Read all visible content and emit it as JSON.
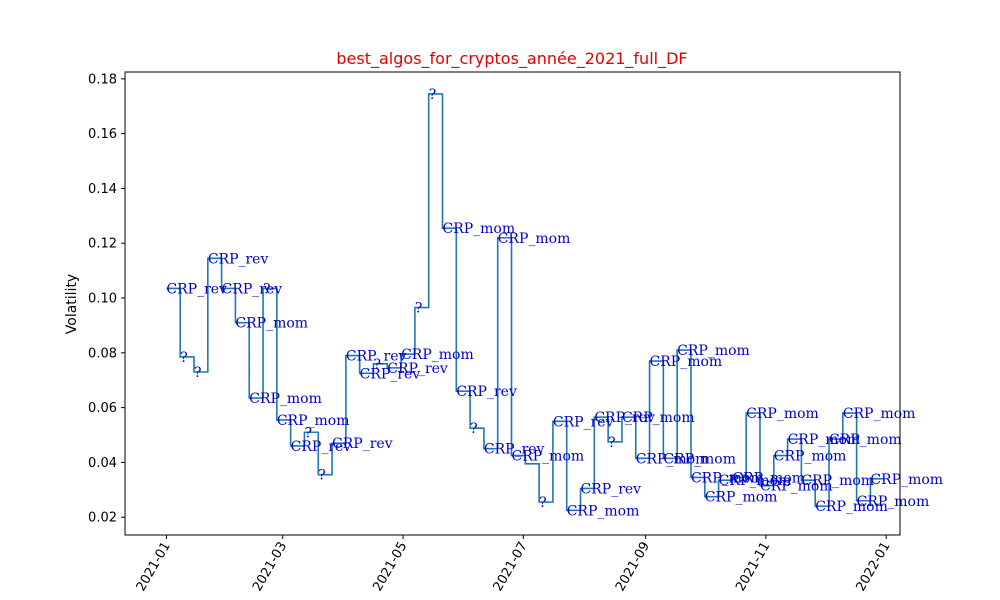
{
  "colors": {
    "line": "#1f77b4",
    "title": "#e00000",
    "annotation": "#0000cc",
    "axes": "#000000"
  },
  "chart_data": {
    "type": "line",
    "step": true,
    "title": "best_algos_for_cryptos_année_2021_full_DF",
    "xlabel": "",
    "ylabel": "Volatility",
    "x_is_date": true,
    "xlim": [
      "2020-12-11",
      "2022-01-08"
    ],
    "ylim": [
      0.0135,
      0.1825
    ],
    "xticks": [
      "2021-01",
      "2021-03",
      "2021-05",
      "2021-07",
      "2021-09",
      "2021-11",
      "2022-01"
    ],
    "xtick_dates": [
      "2021-01-01",
      "2021-03-01",
      "2021-05-01",
      "2021-07-01",
      "2021-09-01",
      "2021-11-01",
      "2022-01-01"
    ],
    "yticks": [
      "0.02",
      "0.04",
      "0.06",
      "0.08",
      "0.10",
      "0.12",
      "0.14",
      "0.16",
      "0.18"
    ],
    "ytick_values": [
      0.02,
      0.04,
      0.06,
      0.08,
      0.1,
      0.12,
      0.14,
      0.16,
      0.18
    ],
    "grid": false,
    "series": [
      {
        "points": [
          [
            "2021-01-01",
            0.1035
          ],
          [
            "2021-01-08",
            0.0785
          ],
          [
            "2021-01-15",
            0.073
          ],
          [
            "2021-01-22",
            0.1145
          ],
          [
            "2021-01-29",
            0.1035
          ],
          [
            "2021-02-05",
            0.091
          ],
          [
            "2021-02-12",
            0.0635
          ],
          [
            "2021-02-19",
            0.1035
          ],
          [
            "2021-02-26",
            0.0555
          ],
          [
            "2021-03-05",
            0.046
          ],
          [
            "2021-03-12",
            0.051
          ],
          [
            "2021-03-19",
            0.0355
          ],
          [
            "2021-03-26",
            0.047
          ],
          [
            "2021-04-02",
            0.079
          ],
          [
            "2021-04-09",
            0.0725
          ],
          [
            "2021-04-16",
            0.076
          ],
          [
            "2021-04-23",
            0.0745
          ],
          [
            "2021-04-30",
            0.0795
          ],
          [
            "2021-05-07",
            0.0965
          ],
          [
            "2021-05-14",
            0.1745
          ],
          [
            "2021-05-21",
            0.1255
          ],
          [
            "2021-05-28",
            0.066
          ],
          [
            "2021-06-04",
            0.0525
          ],
          [
            "2021-06-11",
            0.045
          ],
          [
            "2021-06-18",
            0.122
          ],
          [
            "2021-06-25",
            0.0425
          ],
          [
            "2021-07-02",
            0.0395
          ],
          [
            "2021-07-09",
            0.0255
          ],
          [
            "2021-07-16",
            0.055
          ],
          [
            "2021-07-23",
            0.0225
          ],
          [
            "2021-07-30",
            0.0305
          ],
          [
            "2021-08-06",
            0.0565
          ],
          [
            "2021-08-13",
            0.0475
          ],
          [
            "2021-08-20",
            0.0565
          ],
          [
            "2021-08-27",
            0.0415
          ],
          [
            "2021-09-03",
            0.077
          ],
          [
            "2021-09-10",
            0.0415
          ],
          [
            "2021-09-17",
            0.081
          ],
          [
            "2021-09-24",
            0.0345
          ],
          [
            "2021-10-01",
            0.0275
          ],
          [
            "2021-10-08",
            0.0335
          ],
          [
            "2021-10-15",
            0.0345
          ],
          [
            "2021-10-22",
            0.058
          ],
          [
            "2021-10-29",
            0.0315
          ],
          [
            "2021-11-05",
            0.0425
          ],
          [
            "2021-11-12",
            0.0485
          ],
          [
            "2021-11-19",
            0.0335
          ],
          [
            "2021-11-26",
            0.024
          ],
          [
            "2021-12-03",
            0.0485
          ],
          [
            "2021-12-10",
            0.058
          ],
          [
            "2021-12-17",
            0.026
          ],
          [
            "2021-12-24",
            0.034
          ]
        ]
      }
    ],
    "annotations": [
      {
        "x": "2021-01-01",
        "y": 0.1035,
        "text": "CRP_rev"
      },
      {
        "x": "2021-01-08",
        "y": 0.0785,
        "text": "?"
      },
      {
        "x": "2021-01-15",
        "y": 0.073,
        "text": "?"
      },
      {
        "x": "2021-01-22",
        "y": 0.1145,
        "text": "CRP_rev"
      },
      {
        "x": "2021-01-29",
        "y": 0.1035,
        "text": "CRP_rev"
      },
      {
        "x": "2021-02-05",
        "y": 0.091,
        "text": "CRP_mom"
      },
      {
        "x": "2021-02-12",
        "y": 0.0635,
        "text": "CRP_mom"
      },
      {
        "x": "2021-02-19",
        "y": 0.1035,
        "text": "?"
      },
      {
        "x": "2021-02-26",
        "y": 0.0555,
        "text": "CRP_mom"
      },
      {
        "x": "2021-03-05",
        "y": 0.046,
        "text": "CRP_rev"
      },
      {
        "x": "2021-03-12",
        "y": 0.051,
        "text": "?"
      },
      {
        "x": "2021-03-19",
        "y": 0.0355,
        "text": "?"
      },
      {
        "x": "2021-03-26",
        "y": 0.047,
        "text": "CRP_rev"
      },
      {
        "x": "2021-04-02",
        "y": 0.079,
        "text": "CRP_rev"
      },
      {
        "x": "2021-04-09",
        "y": 0.0725,
        "text": "CRP_rev"
      },
      {
        "x": "2021-04-16",
        "y": 0.076,
        "text": "?"
      },
      {
        "x": "2021-04-23",
        "y": 0.0745,
        "text": "CRP_rev"
      },
      {
        "x": "2021-04-30",
        "y": 0.0795,
        "text": "CRP_mom"
      },
      {
        "x": "2021-05-07",
        "y": 0.0965,
        "text": "?"
      },
      {
        "x": "2021-05-14",
        "y": 0.1745,
        "text": "?"
      },
      {
        "x": "2021-05-21",
        "y": 0.1255,
        "text": "CRP_mom"
      },
      {
        "x": "2021-05-28",
        "y": 0.066,
        "text": "CRP_rev"
      },
      {
        "x": "2021-06-04",
        "y": 0.0525,
        "text": "?"
      },
      {
        "x": "2021-06-11",
        "y": 0.045,
        "text": "CRP_rev"
      },
      {
        "x": "2021-06-18",
        "y": 0.122,
        "text": "CRP_mom"
      },
      {
        "x": "2021-06-25",
        "y": 0.0425,
        "text": "CRP_mom"
      },
      {
        "x": "2021-07-09",
        "y": 0.0255,
        "text": "?"
      },
      {
        "x": "2021-07-16",
        "y": 0.055,
        "text": "CRP_rev"
      },
      {
        "x": "2021-07-23",
        "y": 0.0225,
        "text": "CRP_mom"
      },
      {
        "x": "2021-07-30",
        "y": 0.0305,
        "text": "CRP_rev"
      },
      {
        "x": "2021-08-06",
        "y": 0.0565,
        "text": "CRP_rev"
      },
      {
        "x": "2021-08-13",
        "y": 0.0475,
        "text": "?"
      },
      {
        "x": "2021-08-20",
        "y": 0.0565,
        "text": "CRP_mom"
      },
      {
        "x": "2021-08-27",
        "y": 0.0415,
        "text": "CRP_mom"
      },
      {
        "x": "2021-09-03",
        "y": 0.077,
        "text": "CRP_mom"
      },
      {
        "x": "2021-09-10",
        "y": 0.0415,
        "text": "CRP_mom"
      },
      {
        "x": "2021-09-17",
        "y": 0.081,
        "text": "CRP_mom"
      },
      {
        "x": "2021-09-24",
        "y": 0.0345,
        "text": "CRP_mom"
      },
      {
        "x": "2021-10-01",
        "y": 0.0275,
        "text": "CRP_mom"
      },
      {
        "x": "2021-10-08",
        "y": 0.0335,
        "text": "CRP_mom"
      },
      {
        "x": "2021-10-15",
        "y": 0.0345,
        "text": "CRP_mom"
      },
      {
        "x": "2021-10-22",
        "y": 0.058,
        "text": "CRP_mom"
      },
      {
        "x": "2021-10-29",
        "y": 0.0315,
        "text": "CRP_mom"
      },
      {
        "x": "2021-11-05",
        "y": 0.0425,
        "text": "CRP_mom"
      },
      {
        "x": "2021-11-12",
        "y": 0.0485,
        "text": "CRP_mom"
      },
      {
        "x": "2021-11-19",
        "y": 0.0335,
        "text": "CRP_mom"
      },
      {
        "x": "2021-11-26",
        "y": 0.024,
        "text": "CRP_mom"
      },
      {
        "x": "2021-12-03",
        "y": 0.0485,
        "text": "CRP_mom"
      },
      {
        "x": "2021-12-10",
        "y": 0.058,
        "text": "CRP_mom"
      },
      {
        "x": "2021-12-17",
        "y": 0.026,
        "text": "CRP_mom"
      },
      {
        "x": "2021-12-24",
        "y": 0.034,
        "text": "CRP_mom"
      }
    ]
  }
}
